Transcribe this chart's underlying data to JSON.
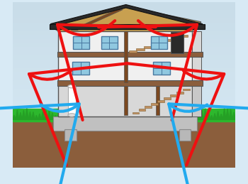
{
  "figsize": [
    3.5,
    2.59
  ],
  "dpi": 100,
  "sky_color_top": "#c8dce8",
  "sky_color_bottom": "#d8eaf5",
  "ground_color": "#8B5E3C",
  "grass_color": "#2db82d",
  "wall_color": "#f0f0f0",
  "wall_right_color": "#e0e0e0",
  "floor_color": "#8B5E3C",
  "roof_color": "#2a2a2a",
  "roof_interior_color": "#c8a050",
  "crawl_color": "#d8d8d8",
  "crawl_right_color": "#c8c8c8",
  "foundation_color": "#c0c0c0",
  "outline_color": "#555555",
  "window_fill": "#90c8e0",
  "window_border": "#4878a0",
  "door_color": "#2a2a2a",
  "stair_tread_color": "#c09060",
  "stair_riser_color": "#a07040",
  "pipe_color": "#f0f0f0",
  "pipe_border": "#aaaaaa",
  "red_arrow": "#ee1111",
  "blue_arrow": "#22aaee",
  "post_color": "#7a4820"
}
